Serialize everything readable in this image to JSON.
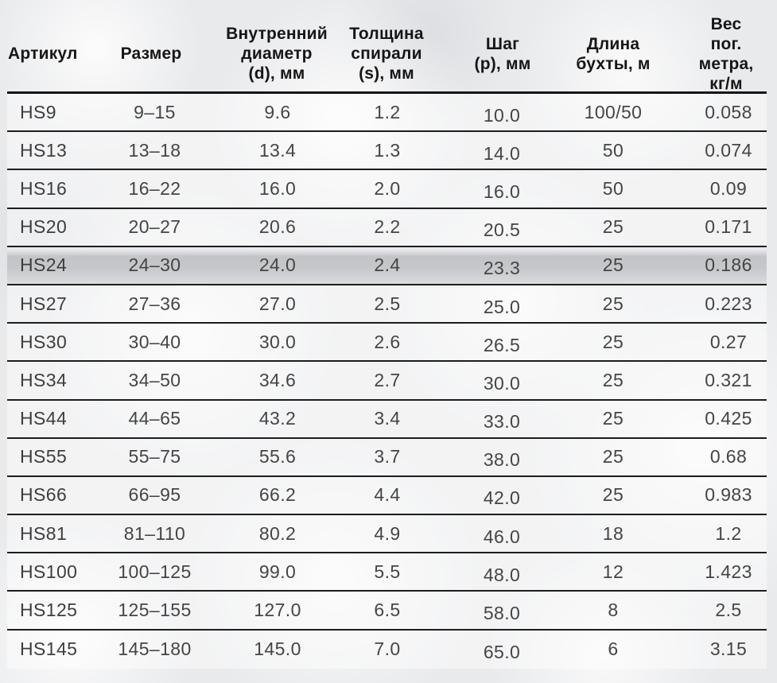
{
  "table": {
    "header": {
      "article": "Артикул",
      "size": "Размер",
      "diameter": "Внутренний\nдиаметр\n(d), мм",
      "thickness": "Толщина\nспирали\n(s), мм",
      "pitch": "Шаг\n(p), мм",
      "coil_length": "Длина\nбухты, м",
      "weight": "Вес пог.\nметра,\nкг/м"
    },
    "rows": [
      {
        "article": "HS9",
        "size": "9–15",
        "diameter": "9.6",
        "thickness": "1.2",
        "pitch": "10.0",
        "coil_length": "100/50",
        "weight": "0.058"
      },
      {
        "article": "HS13",
        "size": "13–18",
        "diameter": "13.4",
        "thickness": "1.3",
        "pitch": "14.0",
        "coil_length": "50",
        "weight": "0.074"
      },
      {
        "article": "HS16",
        "size": "16–22",
        "diameter": "16.0",
        "thickness": "2.0",
        "pitch": "16.0",
        "coil_length": "50",
        "weight": "0.09"
      },
      {
        "article": "HS20",
        "size": "20–27",
        "diameter": "20.6",
        "thickness": "2.2",
        "pitch": "20.5",
        "coil_length": "25",
        "weight": "0.171"
      },
      {
        "article": "HS24",
        "size": "24–30",
        "diameter": "24.0",
        "thickness": "2.4",
        "pitch": "23.3",
        "coil_length": "25",
        "weight": "0.186"
      },
      {
        "article": "HS27",
        "size": "27–36",
        "diameter": "27.0",
        "thickness": "2.5",
        "pitch": "25.0",
        "coil_length": "25",
        "weight": "0.223"
      },
      {
        "article": "HS30",
        "size": "30–40",
        "diameter": "30.0",
        "thickness": "2.6",
        "pitch": "26.5",
        "coil_length": "25",
        "weight": "0.27"
      },
      {
        "article": "HS34",
        "size": "34–50",
        "diameter": "34.6",
        "thickness": "2.7",
        "pitch": "30.0",
        "coil_length": "25",
        "weight": "0.321"
      },
      {
        "article": "HS44",
        "size": "44–65",
        "diameter": "43.2",
        "thickness": "3.4",
        "pitch": "33.0",
        "coil_length": "25",
        "weight": "0.425"
      },
      {
        "article": "HS55",
        "size": "55–75",
        "diameter": "55.6",
        "thickness": "3.7",
        "pitch": "38.0",
        "coil_length": "25",
        "weight": "0.68"
      },
      {
        "article": "HS66",
        "size": "66–95",
        "diameter": "66.2",
        "thickness": "4.4",
        "pitch": "42.0",
        "coil_length": "25",
        "weight": "0.983"
      },
      {
        "article": "HS81",
        "size": "81–110",
        "diameter": "80.2",
        "thickness": "4.9",
        "pitch": "46.0",
        "coil_length": "18",
        "weight": "1.2"
      },
      {
        "article": "HS100",
        "size": "100–125",
        "diameter": "99.0",
        "thickness": "5.5",
        "pitch": "48.0",
        "coil_length": "12",
        "weight": "1.423"
      },
      {
        "article": "HS125",
        "size": "125–155",
        "diameter": "127.0",
        "thickness": "6.5",
        "pitch": "58.0",
        "coil_length": "8",
        "weight": "2.5"
      },
      {
        "article": "HS145",
        "size": "145–180",
        "diameter": "145.0",
        "thickness": "7.0",
        "pitch": "65.0",
        "coil_length": "6",
        "weight": "3.15"
      }
    ],
    "highlighted_article": "HS24"
  },
  "colors": {
    "background": "#e9eaec",
    "rule_line": "#1d1d1d",
    "header_text": "#161616",
    "cell_text": "#454545",
    "highlight_gray": "#c5c6c9"
  }
}
